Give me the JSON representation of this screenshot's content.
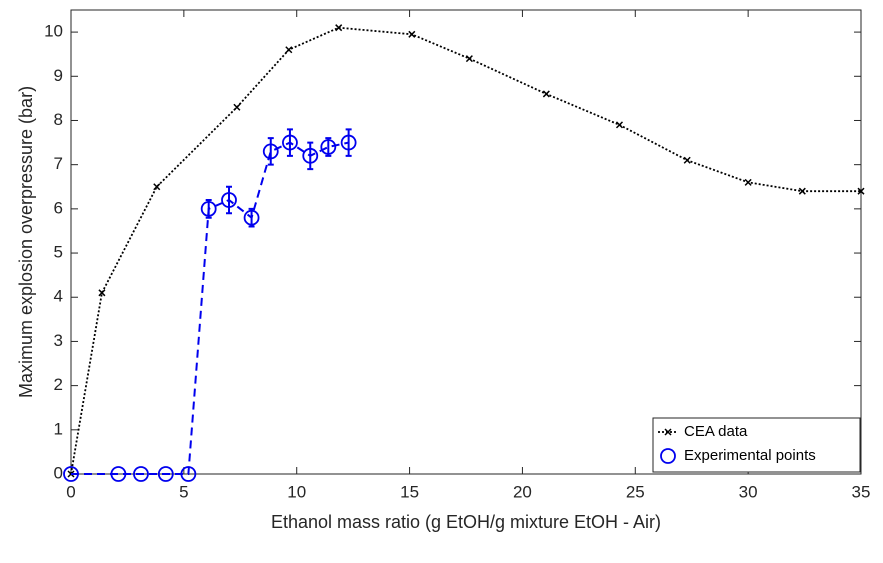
{
  "chart_data": {
    "type": "line",
    "x_label": "Ethanol mass ratio (g EtOH/g mixture EtOH - Air)",
    "y_label": "Maximum explosion overpressure (bar)",
    "xlim": [
      0,
      35
    ],
    "xticks": [
      0,
      5,
      10,
      15,
      20,
      25,
      30,
      35
    ],
    "ylim": [
      0,
      10.5
    ],
    "yticks": [
      0,
      1,
      2,
      3,
      4,
      5,
      6,
      7,
      8,
      9,
      10
    ],
    "legend": "lower right",
    "series": [
      {
        "name": "CEA data",
        "color": "#000000",
        "line": "dotted",
        "marker": "x",
        "x": [
          0,
          1.37,
          3.8,
          7.35,
          9.65,
          11.86,
          15.1,
          17.65,
          21.06,
          24.3,
          27.3,
          30.0,
          32.4,
          35.0
        ],
        "values": [
          0,
          4.1,
          6.5,
          8.3,
          9.6,
          10.1,
          9.95,
          9.4,
          8.6,
          7.9,
          7.1,
          6.6,
          6.4,
          6.4
        ]
      },
      {
        "name": "Experimental points",
        "color": "#0000ee",
        "line": "dashed",
        "marker": "circle",
        "x": [
          0,
          2.1,
          3.1,
          4.2,
          5.2,
          6.1,
          7.0,
          8.0,
          8.85,
          9.7,
          10.6,
          11.4,
          12.3
        ],
        "values": [
          0,
          0,
          0,
          0,
          0,
          6.0,
          6.2,
          5.8,
          7.3,
          7.5,
          7.2,
          7.4,
          7.5
        ],
        "errors": [
          null,
          null,
          null,
          null,
          null,
          0.2,
          0.3,
          0.2,
          0.3,
          0.3,
          0.3,
          0.2,
          0.3
        ]
      }
    ]
  }
}
